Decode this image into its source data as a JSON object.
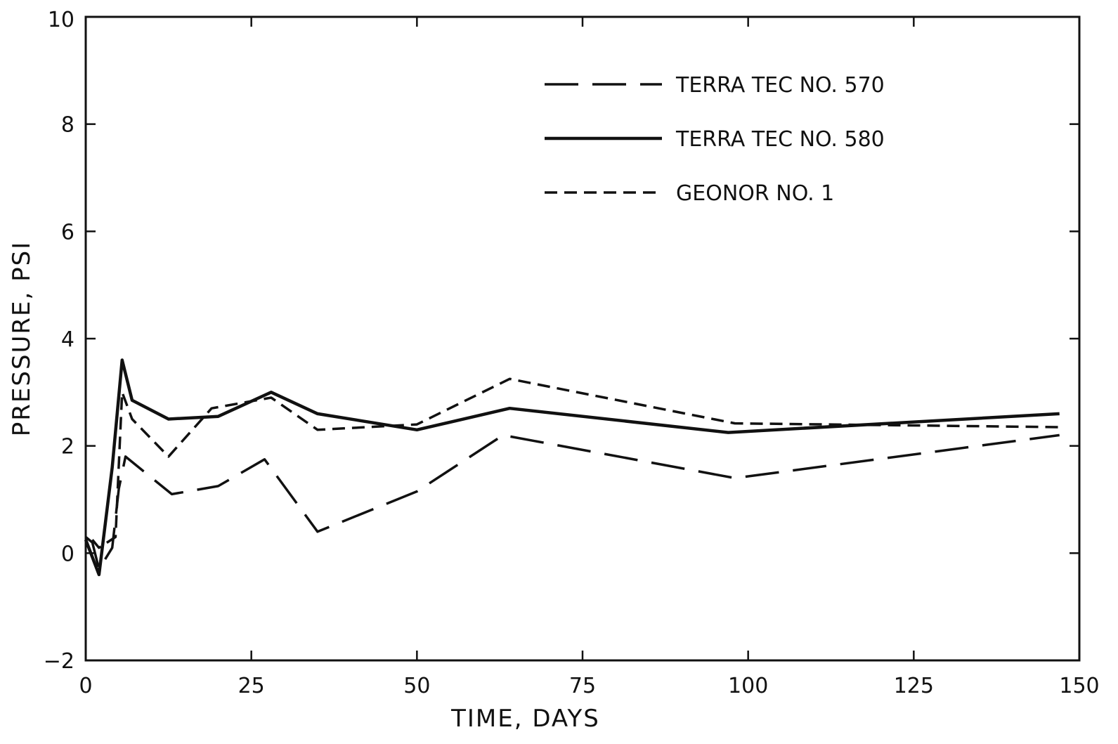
{
  "chart_data": {
    "type": "line",
    "title": "",
    "xlabel": "TIME, DAYS",
    "ylabel": "PRESSURE, PSI",
    "xlim": [
      0,
      150
    ],
    "ylim": [
      -2,
      10
    ],
    "xticks": [
      0,
      25,
      50,
      75,
      100,
      125,
      150
    ],
    "yticks": [
      -2,
      0,
      2,
      4,
      6,
      8,
      10
    ],
    "xtick_labels": [
      "0",
      "25",
      "50",
      "75",
      "100",
      "125",
      "150"
    ],
    "ytick_labels": [
      "−2",
      "0",
      "2",
      "4",
      "6",
      "8",
      "10"
    ],
    "grid": false,
    "legend_position": "top-right",
    "series": [
      {
        "name": "TERRA TEC NO. 570",
        "style": "long-dash",
        "x": [
          0,
          1,
          2,
          4,
          5,
          6,
          13,
          20,
          27,
          35,
          50,
          63,
          98,
          147
        ],
        "y": [
          0.3,
          0.2,
          -0.3,
          0.1,
          1.2,
          1.8,
          1.1,
          1.25,
          1.75,
          0.4,
          1.15,
          2.2,
          1.4,
          2.2
        ]
      },
      {
        "name": "TERRA TEC NO. 580",
        "style": "solid",
        "x": [
          0,
          2,
          4,
          5.5,
          7,
          12.5,
          20,
          28,
          35,
          50,
          64,
          97,
          147
        ],
        "y": [
          0.25,
          -0.4,
          1.6,
          3.6,
          2.85,
          2.5,
          2.55,
          3.0,
          2.6,
          2.3,
          2.7,
          2.25,
          2.6
        ]
      },
      {
        "name": "GEONOR NO. 1",
        "style": "short-dash",
        "x": [
          1,
          2,
          4.5,
          5.5,
          7,
          12.5,
          19,
          28,
          35,
          50,
          64,
          98,
          147
        ],
        "y": [
          0.25,
          0.1,
          0.3,
          3.0,
          2.5,
          1.8,
          2.7,
          2.9,
          2.3,
          2.4,
          3.25,
          2.42,
          2.35
        ]
      }
    ]
  }
}
